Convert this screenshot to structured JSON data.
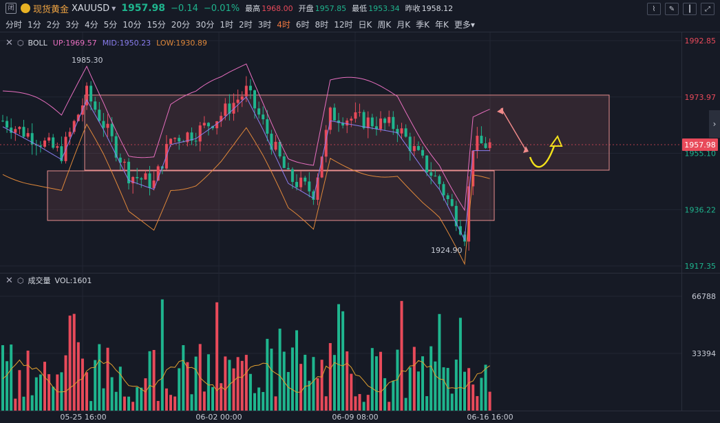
{
  "header": {
    "lock_icon_text": "闭",
    "name": "现货黄金",
    "symbol": "XAUUSD",
    "price": "1957.98",
    "change": "−0.14",
    "change_pct": "−0.01%",
    "high_label": "最高",
    "high_value": "1968.00",
    "open_label": "开盘",
    "open_value": "1957.85",
    "low_label": "最低",
    "low_value": "1953.34",
    "prev_label": "昨收",
    "prev_value": "1958.12"
  },
  "periods": [
    "分时",
    "1分",
    "2分",
    "3分",
    "4分",
    "5分",
    "10分",
    "15分",
    "20分",
    "30分",
    "1时",
    "2时",
    "3时",
    "4时",
    "6时",
    "8时",
    "12时",
    "日K",
    "周K",
    "月K",
    "季K",
    "年K",
    "更多"
  ],
  "active_period": "4时",
  "main_panel": {
    "indicator_name": "BOLL",
    "up_text": "UP:1969.57",
    "mid_text": "MID:1950.23",
    "low_text": "LOW:1930.89",
    "up_color": "#e86fc0",
    "mid_color": "#8a7ef0",
    "low_color": "#e0883a",
    "high_annotation": "1985.30",
    "low_annotation": "1924.90",
    "current_price_tag": "1957.98",
    "y_ticks": [
      "1992.85",
      "1973.97",
      "1955.10",
      "1936.22",
      "1917.35"
    ]
  },
  "vol_panel": {
    "title": "成交量",
    "vol_text": "VOL:1601",
    "y_ticks": [
      "66788",
      "33394"
    ]
  },
  "x_labels": [
    "05-25 16:00",
    "06-02 00:00",
    "06-09 08:00",
    "06-16 16:00"
  ],
  "colors": {
    "up": "#e84a5a",
    "down": "#1fb58e",
    "bg": "#161a25",
    "grid": "#232836"
  },
  "chart_data": {
    "type": "candlestick",
    "symbol": "XAUUSD",
    "timeframe": "4h",
    "ylim_price": [
      1917.35,
      1992.85
    ],
    "ylim_volume": [
      0,
      66788
    ],
    "x_ticks": [
      "05-25 16:00",
      "06-02 00:00",
      "06-09 08:00",
      "06-16 16:00"
    ],
    "indicators": {
      "BOLL": {
        "UP": 1969.57,
        "MID": 1950.23,
        "LOW": 1930.89
      },
      "VOL": 1601
    },
    "annotations": [
      {
        "label": "1985.30",
        "type": "high"
      },
      {
        "label": "1924.90",
        "type": "low"
      }
    ],
    "last_price": 1957.98
  }
}
